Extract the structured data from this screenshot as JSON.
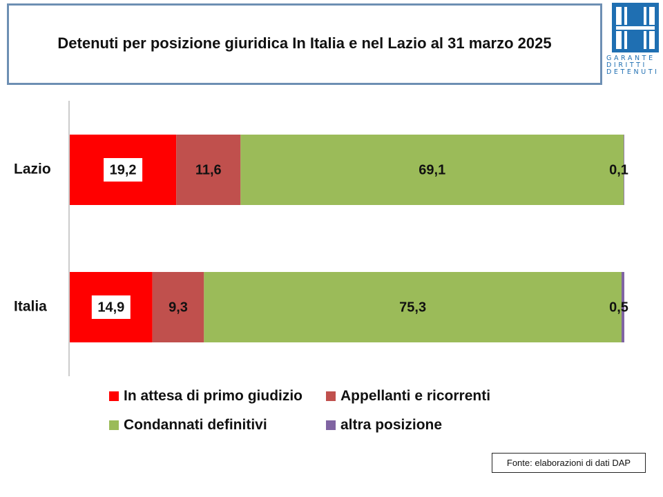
{
  "title": "Detenuti per posizione giuridica In Italia e nel Lazio al 31 marzo 2025",
  "logo": {
    "icon": "garante-logo-icon",
    "line1": "GARANTE",
    "line2": "DIRITTI",
    "line3": "DETENUTI",
    "color": "#1f6fb2"
  },
  "source": "Fonte: elaborazioni di dati DAP",
  "chart_data": {
    "type": "bar",
    "orientation": "horizontal",
    "stacked": true,
    "percent_stacked": true,
    "categories": [
      "Lazio",
      "Italia"
    ],
    "series": [
      {
        "name": "In attesa di primo giudizio",
        "color": "#ff0000",
        "values": [
          19.2,
          14.9
        ]
      },
      {
        "name": "Appellanti e ricorrenti",
        "color": "#c0504d",
        "values": [
          11.6,
          9.3
        ]
      },
      {
        "name": "Condannati definitivi",
        "color": "#9bbb59",
        "values": [
          69.1,
          75.3
        ]
      },
      {
        "name": "altra posizione",
        "color": "#8064a2",
        "values": [
          0.1,
          0.5
        ]
      }
    ],
    "data_labels": [
      [
        "19,2",
        "11,6",
        "69,1",
        "0,1"
      ],
      [
        "14,9",
        "9,3",
        "75,3",
        "0,5"
      ]
    ],
    "xlim": [
      0,
      100
    ],
    "grid": false,
    "legend_position": "bottom"
  }
}
